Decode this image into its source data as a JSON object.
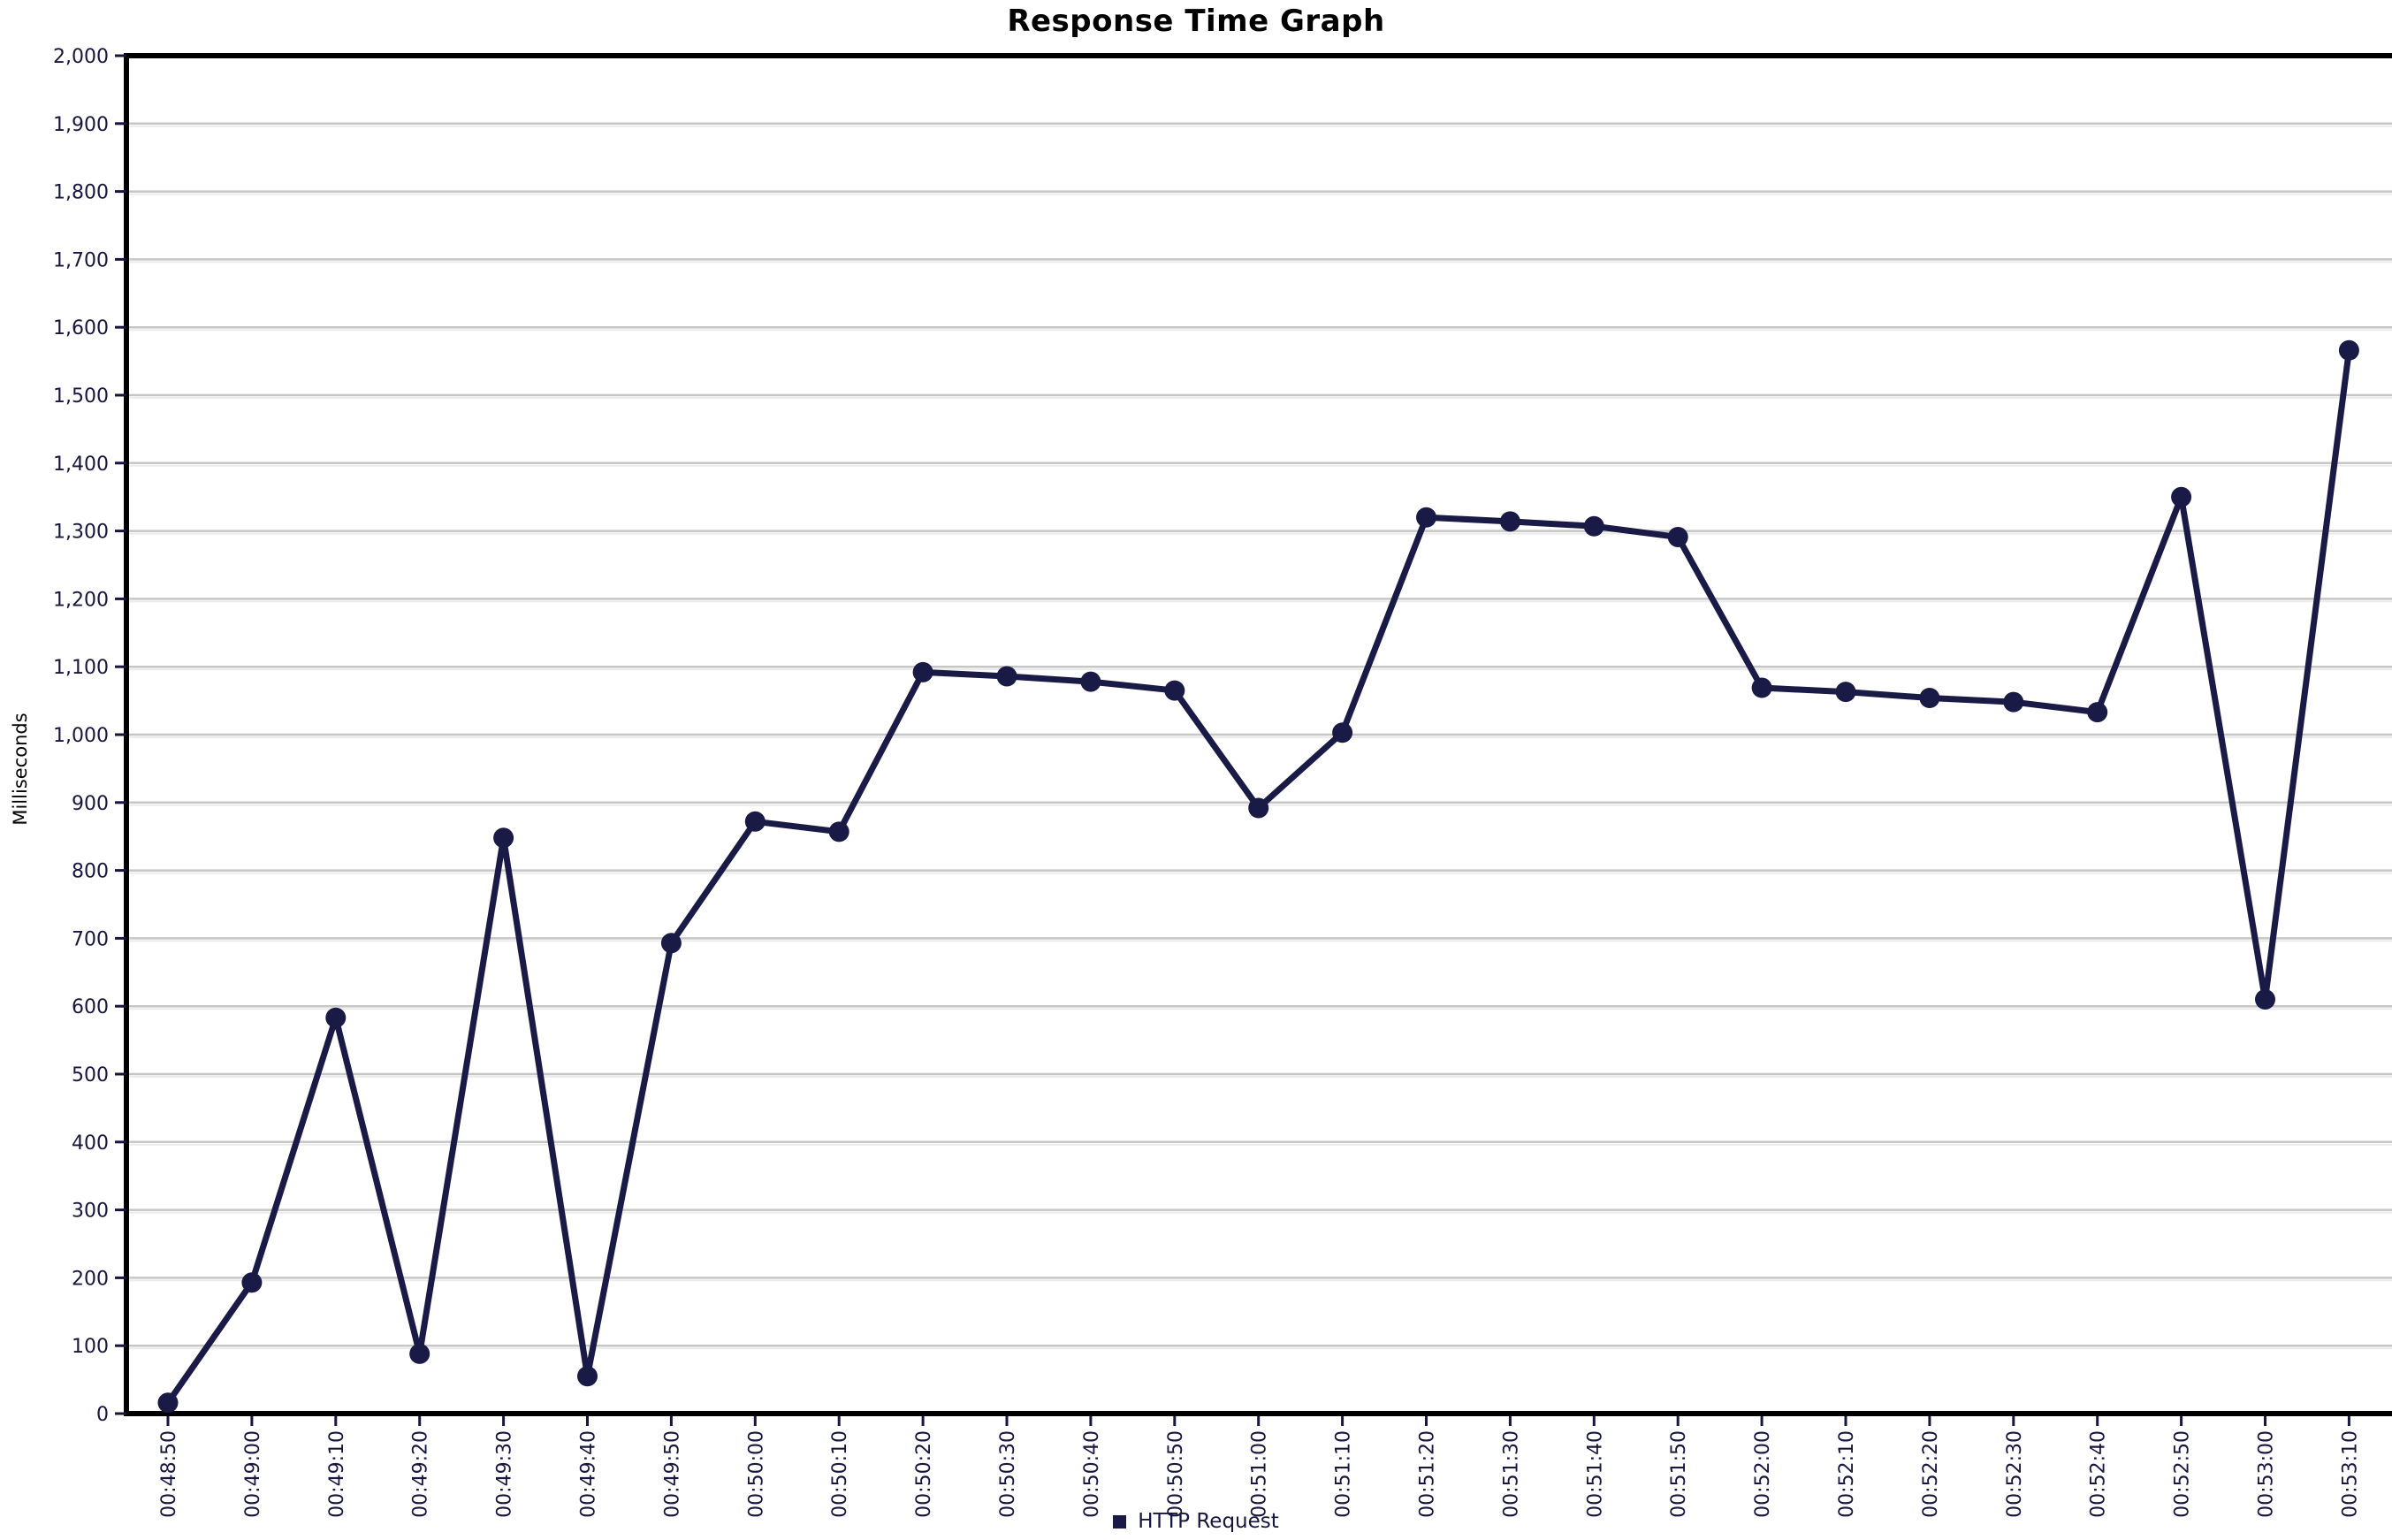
{
  "title": "Response Time Graph",
  "y_axis": {
    "label": "Milliseconds",
    "tick_labels": [
      "0",
      "100",
      "200",
      "300",
      "400",
      "500",
      "600",
      "700",
      "800",
      "900",
      "1,000",
      "1,100",
      "1,200",
      "1,300",
      "1,400",
      "1,500",
      "1,600",
      "1,700",
      "1,800",
      "1,900",
      "2,000"
    ]
  },
  "legend": {
    "items": [
      {
        "label": "HTTP Request",
        "color": "#1a1a46"
      }
    ]
  },
  "colors": {
    "line": "#1a1a46",
    "marker": "#1a1a46",
    "grid": "#c6c6c6",
    "grid_light": "#ececec",
    "axis": "#000000",
    "tick_text": "#16163e",
    "title_text": "#000000"
  },
  "chart_data": {
    "type": "line",
    "title": "Response Time Graph",
    "xlabel": "",
    "ylabel": "Milliseconds",
    "ylim": [
      0,
      2000
    ],
    "ytick_interval": 100,
    "grid": true,
    "legend_position": "bottom-center",
    "marker": "circle",
    "categories": [
      "00:48:50",
      "00:49:00",
      "00:49:10",
      "00:49:20",
      "00:49:30",
      "00:49:40",
      "00:49:50",
      "00:50:00",
      "00:50:10",
      "00:50:20",
      "00:50:30",
      "00:50:40",
      "00:50:50",
      "00:51:00",
      "00:51:10",
      "00:51:20",
      "00:51:30",
      "00:51:40",
      "00:51:50",
      "00:52:00",
      "00:52:10",
      "00:52:20",
      "00:52:30",
      "00:52:40",
      "00:52:50",
      "00:53:00",
      "00:53:10"
    ],
    "series": [
      {
        "name": "HTTP Request",
        "color": "#1a1a46",
        "values": [
          16,
          193,
          583,
          88,
          848,
          55,
          693,
          872,
          857,
          1092,
          1086,
          1078,
          1065,
          892,
          1003,
          1320,
          1314,
          1307,
          1291,
          1069,
          1063,
          1054,
          1048,
          1033,
          1350,
          610,
          1566
        ]
      }
    ]
  }
}
